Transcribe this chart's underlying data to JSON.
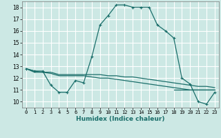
{
  "title": "",
  "xlabel": "Humidex (Indice chaleur)",
  "ylabel": "",
  "background_color": "#cce8e4",
  "grid_color": "#ffffff",
  "line_color": "#1a6e6a",
  "xlim": [
    -0.5,
    23.5
  ],
  "ylim": [
    9.5,
    18.5
  ],
  "xticks": [
    0,
    1,
    2,
    3,
    4,
    5,
    6,
    7,
    8,
    9,
    10,
    11,
    12,
    13,
    14,
    15,
    16,
    17,
    18,
    19,
    20,
    21,
    22,
    23
  ],
  "yticks": [
    10,
    11,
    12,
    13,
    14,
    15,
    16,
    17,
    18
  ],
  "series": [
    {
      "x": [
        0,
        1,
        2,
        3,
        4,
        5,
        6,
        7,
        8,
        9,
        10,
        11,
        12,
        13,
        14,
        15,
        16,
        17,
        18,
        19,
        20,
        21,
        22,
        23
      ],
      "y": [
        12.8,
        12.6,
        12.6,
        11.4,
        10.8,
        10.8,
        11.8,
        11.6,
        13.8,
        16.5,
        17.3,
        18.2,
        18.2,
        18.0,
        18.0,
        18.0,
        16.5,
        16.0,
        15.4,
        12.0,
        11.5,
        10.0,
        9.8,
        10.8
      ],
      "marker": "+"
    },
    {
      "x": [
        0,
        1,
        2,
        3,
        4,
        5,
        6,
        7,
        8,
        9,
        10,
        11,
        12,
        13,
        14,
        15,
        16,
        17,
        18,
        19,
        20,
        21,
        22,
        23
      ],
      "y": [
        12.8,
        12.6,
        12.5,
        12.5,
        12.3,
        12.3,
        12.3,
        12.3,
        12.3,
        12.3,
        12.2,
        12.2,
        12.1,
        12.1,
        12.0,
        11.9,
        11.8,
        11.7,
        11.6,
        11.5,
        11.4,
        11.3,
        11.3,
        11.2
      ],
      "marker": null
    },
    {
      "x": [
        0,
        1,
        2,
        3,
        4,
        5,
        6,
        7,
        8,
        9,
        10,
        11,
        12,
        13,
        14,
        15,
        16,
        17,
        18,
        19,
        20,
        21,
        22,
        23
      ],
      "y": [
        12.8,
        12.5,
        12.5,
        12.4,
        12.2,
        12.2,
        12.2,
        12.2,
        12.1,
        12.0,
        12.0,
        11.9,
        11.8,
        11.7,
        11.6,
        11.5,
        11.4,
        11.3,
        11.2,
        11.1,
        11.0,
        11.0,
        11.0,
        11.0
      ],
      "marker": null
    },
    {
      "x": [
        18,
        19,
        20,
        21,
        22,
        23
      ],
      "y": [
        11.0,
        11.0,
        11.0,
        11.0,
        11.0,
        11.0
      ],
      "marker": null
    }
  ]
}
